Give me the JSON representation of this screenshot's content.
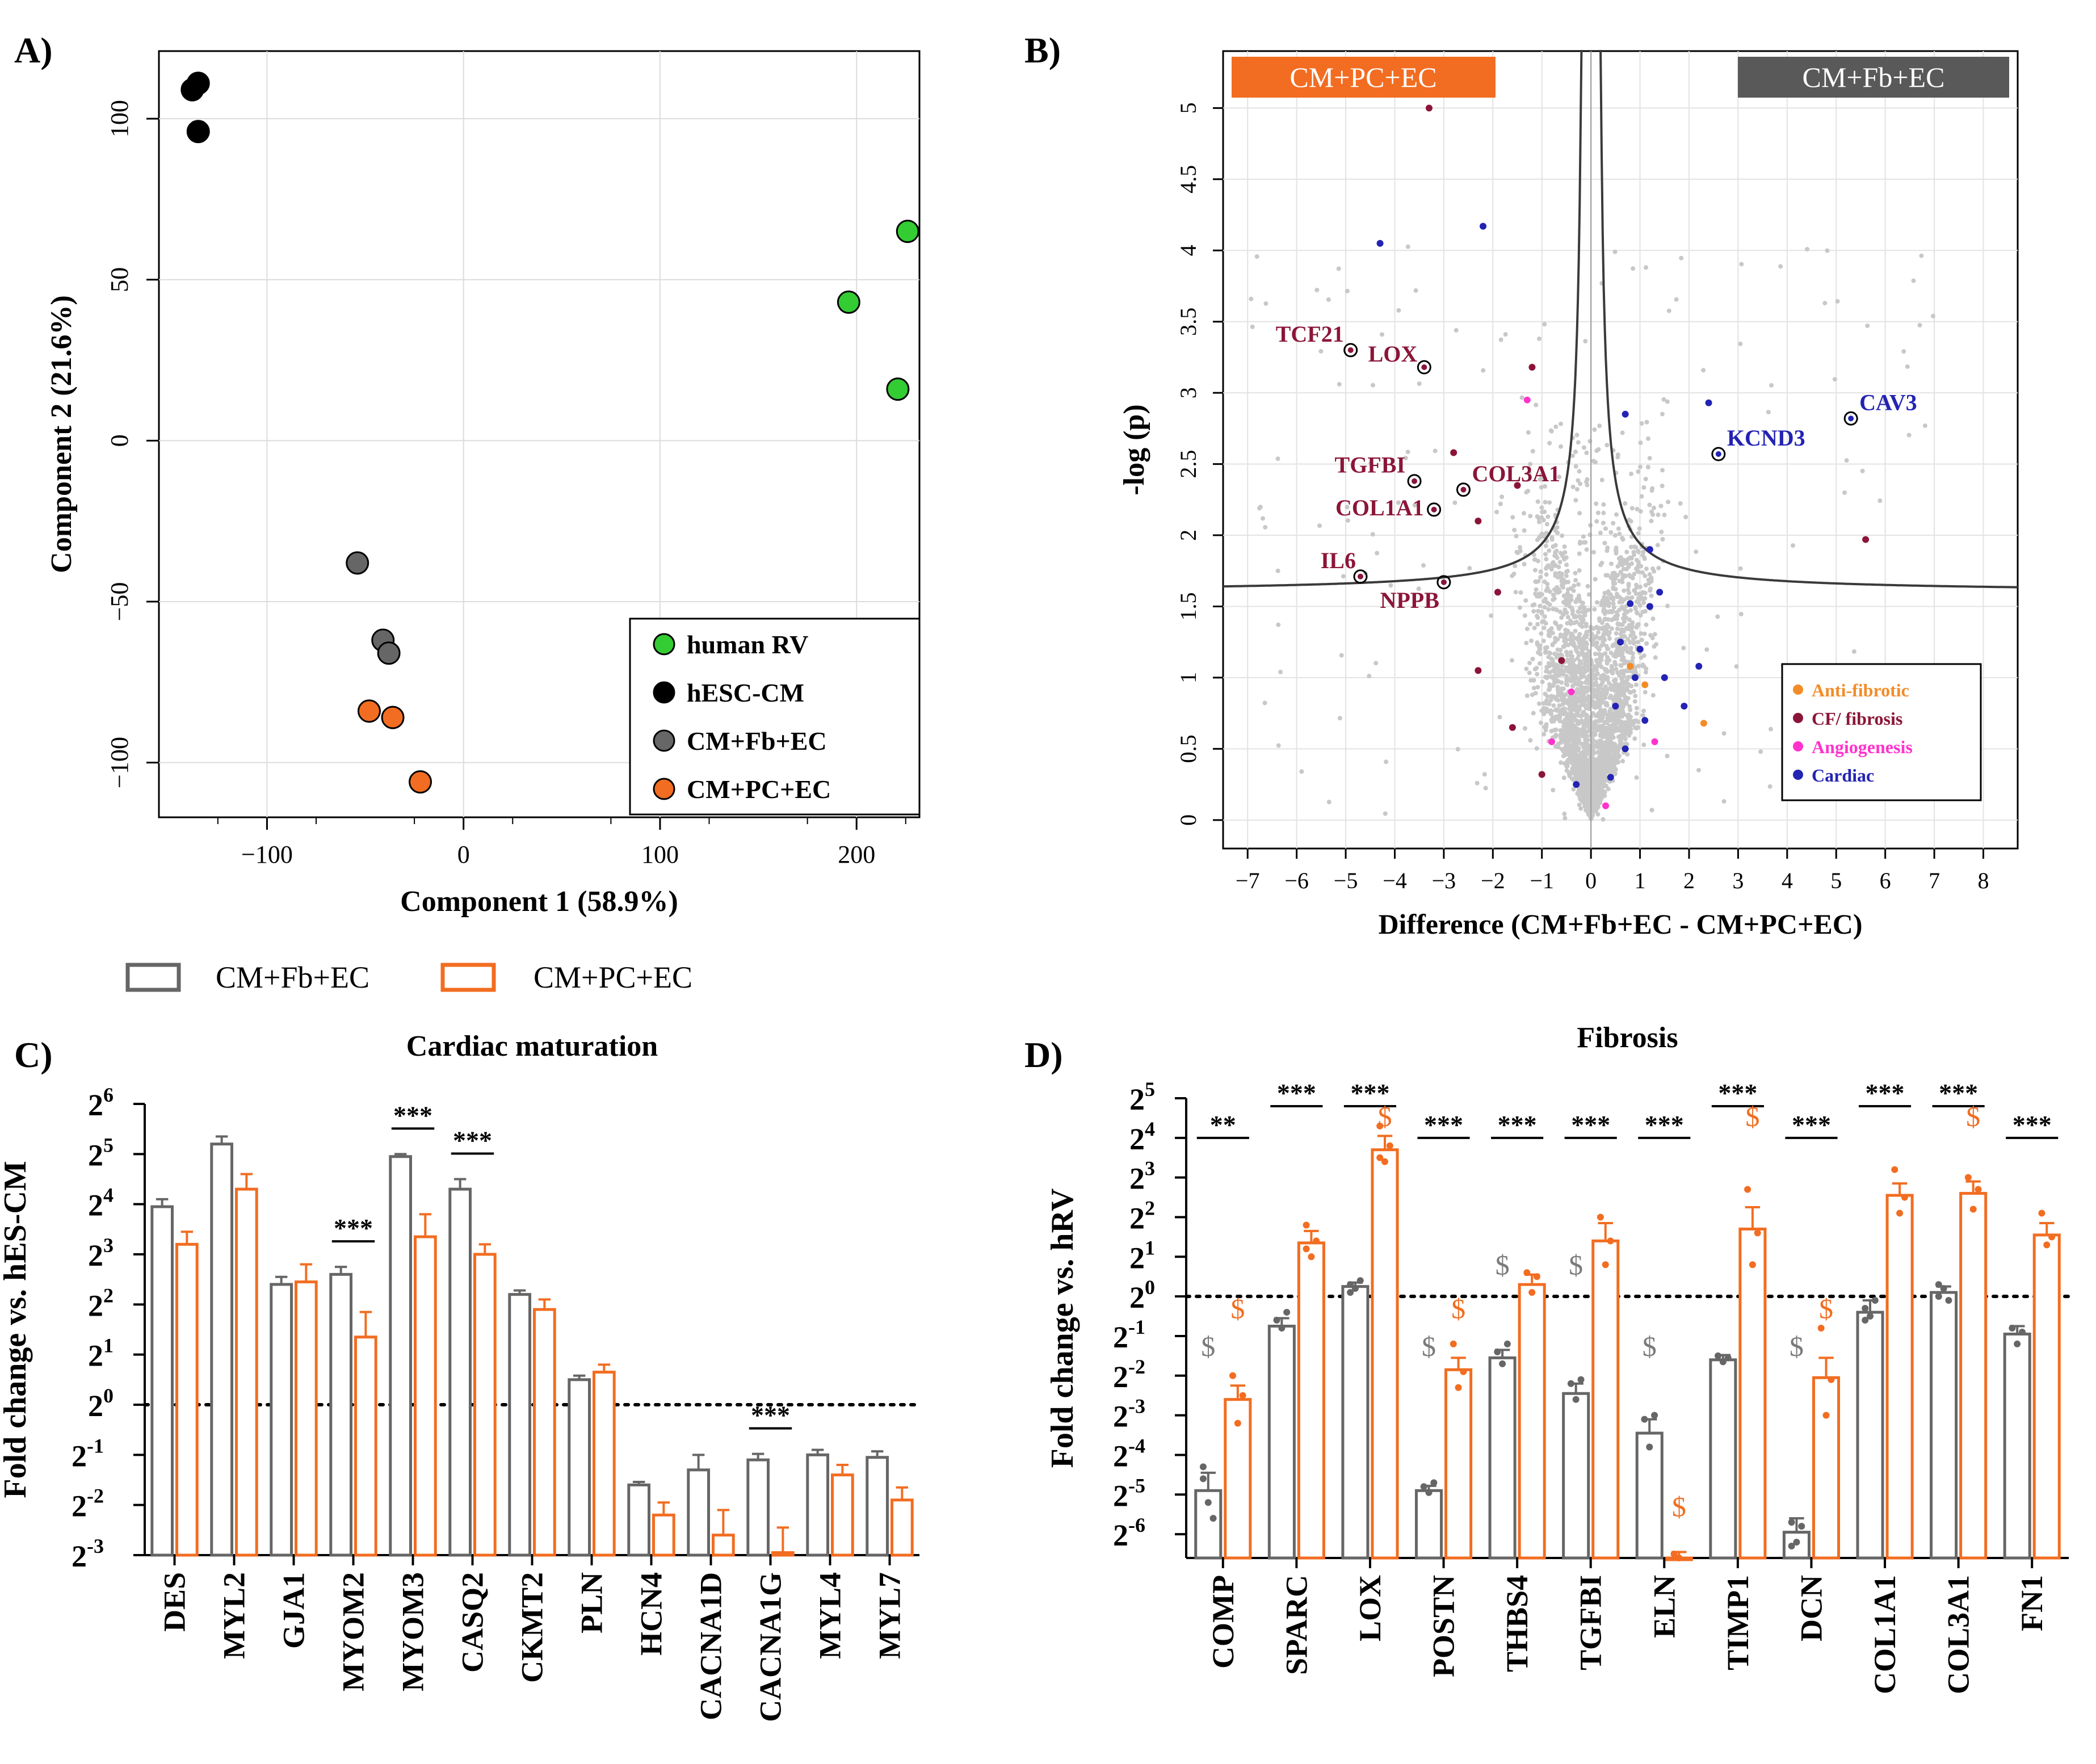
{
  "figure": {
    "panel_labels": [
      "A)",
      "B)",
      "C)",
      "D)"
    ]
  },
  "colors": {
    "human_rv": "#33cc33",
    "hesc_cm": "#000000",
    "cm_fb_ec": "#666666",
    "cm_pc_ec": "#f26d21",
    "anti_fibrotic": "#f28c28",
    "cf_fibrosis": "#8b1538",
    "angiogenesis": "#ff33cc",
    "cardiac": "#2323b4",
    "background_gene": "#c8c8c8"
  },
  "chart_data": [
    {
      "id": "A",
      "type": "scatter",
      "title": "",
      "xlabel": "Component 1 (58.9%)",
      "ylabel": "Component 2 (21.6%)",
      "xlim": [
        -155,
        232
      ],
      "ylim": [
        -117,
        121
      ],
      "xticks": [
        -100,
        0,
        100,
        200
      ],
      "yticks": [
        -100,
        -50,
        0,
        50,
        100
      ],
      "grid": true,
      "legend_position": "bottom-right",
      "series": [
        {
          "name": "human RV",
          "color_key": "human_rv",
          "points": [
            [
              196,
              43
            ],
            [
              226,
              65
            ],
            [
              221,
              16
            ]
          ]
        },
        {
          "name": "hESC-CM",
          "color_key": "hesc_cm",
          "points": [
            [
              -135,
              111
            ],
            [
              -138,
              109
            ],
            [
              -135,
              96
            ]
          ]
        },
        {
          "name": "CM+Fb+EC",
          "color_key": "cm_fb_ec",
          "points": [
            [
              -54,
              -38
            ],
            [
              -41,
              -62
            ],
            [
              -38,
              -66
            ]
          ]
        },
        {
          "name": "CM+PC+EC",
          "color_key": "cm_pc_ec",
          "points": [
            [
              -48,
              -84
            ],
            [
              -36,
              -86
            ],
            [
              -22,
              -106
            ]
          ]
        }
      ]
    },
    {
      "id": "B",
      "type": "scatter",
      "title": "",
      "xlabel": "Difference (CM+Fb+EC - CM+PC+EC)",
      "ylabel": "-log (p)",
      "xlim": [
        -7.5,
        8.7
      ],
      "ylim": [
        -0.2,
        5.4
      ],
      "xticks": [
        -7,
        -6,
        -5,
        -4,
        -3,
        -2,
        -1,
        0,
        1,
        2,
        3,
        4,
        5,
        6,
        7,
        8
      ],
      "yticks": [
        0,
        0.5,
        1,
        1.5,
        2,
        2.5,
        3,
        3.5,
        4,
        4.5,
        5
      ],
      "grid": true,
      "left_banner": "CM+PC+EC",
      "right_banner": "CM+Fb+EC",
      "legend_position": "bottom-right",
      "legend": [
        {
          "label": "Anti-fibrotic",
          "color_key": "anti_fibrotic"
        },
        {
          "label": "CF/ fibrosis",
          "color_key": "cf_fibrosis"
        },
        {
          "label": "Angiogenesis",
          "color_key": "angiogenesis"
        },
        {
          "label": "Cardiac",
          "color_key": "cardiac"
        }
      ],
      "labeled_genes": [
        {
          "gene": "TCF21",
          "x": -4.9,
          "y": 3.3,
          "category": "cf_fibrosis"
        },
        {
          "gene": "LOX",
          "x": -3.4,
          "y": 3.18,
          "category": "cf_fibrosis"
        },
        {
          "gene": "TGFBI",
          "x": -3.6,
          "y": 2.38,
          "category": "cf_fibrosis"
        },
        {
          "gene": "COL3A1",
          "x": -2.6,
          "y": 2.32,
          "category": "cf_fibrosis"
        },
        {
          "gene": "COL1A1",
          "x": -3.2,
          "y": 2.18,
          "category": "cf_fibrosis"
        },
        {
          "gene": "IL6",
          "x": -4.7,
          "y": 1.71,
          "category": "cf_fibrosis"
        },
        {
          "gene": "NPPB",
          "x": -3.0,
          "y": 1.67,
          "category": "cf_fibrosis"
        },
        {
          "gene": "CAV3",
          "x": 5.3,
          "y": 2.82,
          "category": "cardiac"
        },
        {
          "gene": "KCND3",
          "x": 2.6,
          "y": 2.57,
          "category": "cardiac"
        }
      ],
      "highlight_points": [
        {
          "x": -3.3,
          "y": 5.0,
          "category": "cf_fibrosis"
        },
        {
          "x": -4.3,
          "y": 4.05,
          "category": "cardiac"
        },
        {
          "x": -2.2,
          "y": 4.17,
          "category": "cardiac"
        },
        {
          "x": 5.6,
          "y": 1.97,
          "category": "cf_fibrosis"
        },
        {
          "x": 0.7,
          "y": 2.85,
          "category": "cardiac"
        },
        {
          "x": 2.4,
          "y": 2.93,
          "category": "cardiac"
        },
        {
          "x": -2.3,
          "y": 2.1,
          "category": "cf_fibrosis"
        },
        {
          "x": -1.9,
          "y": 1.6,
          "category": "cf_fibrosis"
        },
        {
          "x": -1.2,
          "y": 3.18,
          "category": "cf_fibrosis"
        },
        {
          "x": -1.3,
          "y": 2.95,
          "category": "angiogenesis"
        },
        {
          "x": -2.8,
          "y": 2.58,
          "category": "cf_fibrosis"
        },
        {
          "x": -1.5,
          "y": 2.35,
          "category": "cf_fibrosis"
        },
        {
          "x": -2.3,
          "y": 1.05,
          "category": "cf_fibrosis"
        },
        {
          "x": -0.6,
          "y": 1.12,
          "category": "cf_fibrosis"
        },
        {
          "x": -0.4,
          "y": 0.9,
          "category": "angiogenesis"
        },
        {
          "x": -1.6,
          "y": 0.65,
          "category": "cf_fibrosis"
        },
        {
          "x": -0.8,
          "y": 0.55,
          "category": "angiogenesis"
        },
        {
          "x": -1.0,
          "y": 0.32,
          "category": "cf_fibrosis"
        },
        {
          "x": -0.3,
          "y": 0.25,
          "category": "cardiac"
        },
        {
          "x": 0.3,
          "y": 0.1,
          "category": "angiogenesis"
        },
        {
          "x": 0.8,
          "y": 1.52,
          "category": "cardiac"
        },
        {
          "x": 1.2,
          "y": 1.5,
          "category": "cardiac"
        },
        {
          "x": 1.4,
          "y": 1.6,
          "category": "cardiac"
        },
        {
          "x": 0.6,
          "y": 1.25,
          "category": "cardiac"
        },
        {
          "x": 1.0,
          "y": 1.2,
          "category": "cardiac"
        },
        {
          "x": 0.9,
          "y": 1.0,
          "category": "cardiac"
        },
        {
          "x": 1.5,
          "y": 1.0,
          "category": "cardiac"
        },
        {
          "x": 0.5,
          "y": 0.8,
          "category": "cardiac"
        },
        {
          "x": 1.1,
          "y": 0.7,
          "category": "cardiac"
        },
        {
          "x": 0.7,
          "y": 0.5,
          "category": "cardiac"
        },
        {
          "x": 1.3,
          "y": 0.55,
          "category": "angiogenesis"
        },
        {
          "x": 0.4,
          "y": 0.3,
          "category": "cardiac"
        },
        {
          "x": 0.8,
          "y": 1.08,
          "category": "anti_fibrotic"
        },
        {
          "x": 1.1,
          "y": 0.95,
          "category": "anti_fibrotic"
        },
        {
          "x": 2.3,
          "y": 0.68,
          "category": "anti_fibrotic"
        },
        {
          "x": 2.2,
          "y": 1.08,
          "category": "cardiac"
        },
        {
          "x": 1.9,
          "y": 0.8,
          "category": "cardiac"
        },
        {
          "x": 1.2,
          "y": 1.9,
          "category": "cardiac"
        }
      ],
      "curve_threshold": {
        "s0": 0.3,
        "y_min": 1.6
      }
    },
    {
      "id": "C",
      "type": "bar",
      "title": "Cardiac maturation",
      "xlabel": "",
      "ylabel": "Fold change vs. hES-CM",
      "ylim_log2": [
        -3,
        6
      ],
      "yticks_exponent": [
        "-3",
        "-2",
        "-1",
        "0",
        "1",
        "2",
        "3",
        "4",
        "5",
        "6"
      ],
      "ytick_base": "2",
      "reference_line_log2": 0,
      "categories": [
        "DES",
        "MYL2",
        "GJA1",
        "MYOM2",
        "MYOM3",
        "CASQ2",
        "CKMT2",
        "PLN",
        "HCN4",
        "CACNA1D",
        "CACNA1G",
        "MYL4",
        "MYL7"
      ],
      "series": [
        {
          "name": "CM+Fb+EC",
          "color_key": "cm_fb_ec",
          "values_log2": [
            3.95,
            5.2,
            2.4,
            2.6,
            4.95,
            4.3,
            2.2,
            0.5,
            -1.6,
            -1.3,
            -1.1,
            -1.0,
            -1.05
          ],
          "errors_log2": [
            0.15,
            0.15,
            0.15,
            0.15,
            0.05,
            0.2,
            0.08,
            0.08,
            0.06,
            0.3,
            0.12,
            0.1,
            0.12
          ]
        },
        {
          "name": "CM+PC+EC",
          "color_key": "cm_pc_ec",
          "values_log2": [
            3.2,
            4.3,
            2.45,
            1.35,
            3.35,
            3.0,
            1.9,
            0.65,
            -2.2,
            -2.6,
            -2.95,
            -1.4,
            -1.9
          ],
          "errors_log2": [
            0.25,
            0.3,
            0.35,
            0.5,
            0.45,
            0.2,
            0.2,
            0.15,
            0.25,
            0.5,
            0.5,
            0.2,
            0.25
          ]
        }
      ],
      "significance": [
        {
          "category": "MYOM2",
          "label": "***"
        },
        {
          "category": "MYOM3",
          "label": "***"
        },
        {
          "category": "CASQ2",
          "label": "***"
        },
        {
          "category": "CACNA1G",
          "label": "***"
        }
      ]
    },
    {
      "id": "D",
      "type": "bar",
      "title": "Fibrosis",
      "xlabel": "",
      "ylabel": "Fold change vs. hRV",
      "ylim_log2": [
        -6.6,
        5
      ],
      "yticks_exponent": [
        "-6",
        "-5",
        "-4",
        "-3",
        "-2",
        "-1",
        "0",
        "1",
        "2",
        "3",
        "4",
        "5"
      ],
      "ytick_base": "2",
      "reference_line_log2": 0,
      "categories": [
        "COMP",
        "SPARC",
        "LOX",
        "POSTN",
        "THBS4",
        "TGFBI",
        "ELN",
        "TIMP1",
        "DCN",
        "COL1A1",
        "COL3A1",
        "FN1"
      ],
      "series": [
        {
          "name": "CM+Fb+EC",
          "color_key": "cm_fb_ec",
          "values_log2": [
            -4.9,
            -0.75,
            0.25,
            -4.9,
            -1.55,
            -2.45,
            -3.45,
            -1.6,
            -5.95,
            -0.4,
            0.1,
            -0.95
          ],
          "errors_log2": [
            0.45,
            0.2,
            0.1,
            0.12,
            0.2,
            0.25,
            0.35,
            0.12,
            0.35,
            0.3,
            0.15,
            0.2
          ],
          "dots_log2": [
            [
              -4.3,
              -5.2,
              -5.6,
              -4.6
            ],
            [
              -0.6,
              -0.8,
              -0.4
            ],
            [
              0.3,
              0.2,
              0.4,
              0.1
            ],
            [
              -4.8,
              -4.95,
              -4.7
            ],
            [
              -1.4,
              -1.7,
              -1.2
            ],
            [
              -2.2,
              -2.6,
              -2.1
            ],
            [
              -3.1,
              -3.8,
              -3.0
            ],
            [
              -1.5,
              -1.65,
              -1.55
            ],
            [
              -5.7,
              -6.2,
              -5.8,
              -6.3
            ],
            [
              -0.3,
              -0.5,
              -0.1,
              -0.6
            ],
            [
              0.0,
              0.2,
              -0.1,
              0.3
            ],
            [
              -0.8,
              -1.2,
              -0.9
            ]
          ]
        },
        {
          "name": "CM+PC+EC",
          "color_key": "cm_pc_ec",
          "values_log2": [
            -2.6,
            1.35,
            3.7,
            -1.85,
            0.3,
            1.4,
            -6.6,
            1.7,
            -2.05,
            2.55,
            2.6,
            1.55
          ],
          "errors_log2": [
            0.35,
            0.3,
            0.35,
            0.3,
            0.25,
            0.45,
            0.15,
            0.55,
            0.5,
            0.3,
            0.3,
            0.3
          ],
          "dots_log2": [
            [
              -2.0,
              -3.2,
              -2.5
            ],
            [
              1.8,
              1.0,
              1.4,
              1.2
            ],
            [
              4.3,
              3.4,
              3.8,
              3.5
            ],
            [
              -1.2,
              -2.3,
              -1.9
            ],
            [
              0.6,
              0.1,
              0.5
            ],
            [
              2.0,
              0.8,
              1.4
            ],
            [
              -6.5,
              -6.6
            ],
            [
              2.7,
              0.8,
              1.6
            ],
            [
              -0.8,
              -3.0,
              -2.1
            ],
            [
              3.2,
              2.1,
              2.5
            ],
            [
              3.0,
              2.2,
              2.7
            ],
            [
              2.1,
              1.3,
              1.5
            ]
          ]
        }
      ],
      "significance": [
        {
          "category": "COMP",
          "label": "**"
        },
        {
          "category": "SPARC",
          "label": "***"
        },
        {
          "category": "LOX",
          "label": "***"
        },
        {
          "category": "POSTN",
          "label": "***"
        },
        {
          "category": "THBS4",
          "label": "***"
        },
        {
          "category": "TGFBI",
          "label": "***"
        },
        {
          "category": "ELN",
          "label": "***"
        },
        {
          "category": "TIMP1",
          "label": "***"
        },
        {
          "category": "DCN",
          "label": "***"
        },
        {
          "category": "COL1A1",
          "label": "***"
        },
        {
          "category": "COL3A1",
          "label": "***"
        },
        {
          "category": "FN1",
          "label": "***"
        }
      ],
      "dollar_marks": [
        {
          "category": "COMP",
          "series": "CM+Fb+EC",
          "label": "$"
        },
        {
          "category": "COMP",
          "series": "CM+PC+EC",
          "label": "$"
        },
        {
          "category": "LOX",
          "series": "CM+PC+EC",
          "label": "$"
        },
        {
          "category": "POSTN",
          "series": "CM+Fb+EC",
          "label": "$"
        },
        {
          "category": "POSTN",
          "series": "CM+PC+EC",
          "label": "$"
        },
        {
          "category": "THBS4",
          "series": "CM+Fb+EC",
          "label": "$"
        },
        {
          "category": "TGFBI",
          "series": "CM+Fb+EC",
          "label": "$"
        },
        {
          "category": "ELN",
          "series": "CM+Fb+EC",
          "label": "$"
        },
        {
          "category": "ELN",
          "series": "CM+PC+EC",
          "label": "$"
        },
        {
          "category": "TIMP1",
          "series": "CM+PC+EC",
          "label": "$"
        },
        {
          "category": "DCN",
          "series": "CM+Fb+EC",
          "label": "$"
        },
        {
          "category": "DCN",
          "series": "CM+PC+EC",
          "label": "$"
        },
        {
          "category": "COL3A1",
          "series": "CM+PC+EC",
          "label": "$"
        }
      ]
    }
  ],
  "bar_legend": [
    {
      "label": "CM+Fb+EC",
      "color_key": "cm_fb_ec"
    },
    {
      "label": "CM+PC+EC",
      "color_key": "cm_pc_ec"
    }
  ]
}
